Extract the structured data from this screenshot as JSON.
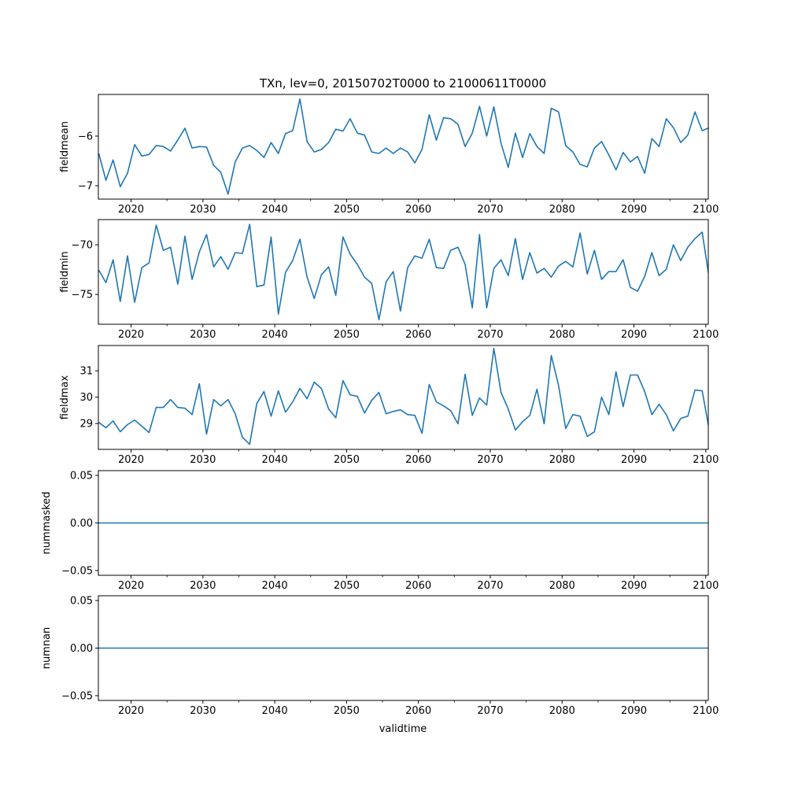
{
  "chart_data": {
    "type": "line",
    "title": "TXn, lev=0, 20150702T0000 to 21000611T0000",
    "xlabel": "validtime",
    "xlim": [
      2015.45,
      2100.35
    ],
    "x_start": 2015.5,
    "x_step": 1,
    "x_ticks": [
      2020,
      2030,
      2040,
      2050,
      2060,
      2070,
      2080,
      2090,
      2100
    ],
    "x_tick_labels": [
      "2020",
      "2030",
      "2040",
      "2050",
      "2060",
      "2070",
      "2080",
      "2090",
      "2100"
    ],
    "x_minor_ticks": [
      2025,
      2035,
      2045,
      2055,
      2065,
      2075,
      2085,
      2095
    ],
    "line_color": "#1f77b4",
    "grid": false,
    "panels": [
      {
        "ylabel": "fieldmean",
        "ylim": [
          -7.27,
          -5.16
        ],
        "y_ticks": [
          -7,
          -6
        ],
        "y_tick_labels": [
          "−7",
          "−6"
        ],
        "values": [
          -6.35,
          -6.89,
          -6.48,
          -7.02,
          -6.75,
          -6.17,
          -6.4,
          -6.37,
          -6.19,
          -6.21,
          -6.3,
          -6.08,
          -5.84,
          -6.24,
          -6.21,
          -6.22,
          -6.59,
          -6.73,
          -7.17,
          -6.52,
          -6.24,
          -6.19,
          -6.29,
          -6.43,
          -6.13,
          -6.35,
          -5.95,
          -5.89,
          -5.25,
          -6.11,
          -6.32,
          -6.27,
          -6.13,
          -5.86,
          -5.9,
          -5.65,
          -5.94,
          -5.98,
          -6.32,
          -6.35,
          -6.24,
          -6.35,
          -6.24,
          -6.32,
          -6.54,
          -6.27,
          -5.57,
          -6.08,
          -5.63,
          -5.65,
          -5.76,
          -6.21,
          -5.94,
          -5.4,
          -6.0,
          -5.41,
          -6.14,
          -6.63,
          -5.94,
          -6.43,
          -5.95,
          -6.21,
          -6.35,
          -5.44,
          -5.51,
          -6.19,
          -6.32,
          -6.57,
          -6.62,
          -6.24,
          -6.11,
          -6.38,
          -6.68,
          -6.33,
          -6.52,
          -6.41,
          -6.75,
          -6.05,
          -6.21,
          -5.65,
          -5.83,
          -6.13,
          -5.98,
          -5.51,
          -5.89,
          -5.83
        ]
      },
      {
        "ylabel": "fieldmin",
        "ylim": [
          -78.0,
          -67.46
        ],
        "y_ticks": [
          -75,
          -70
        ],
        "y_tick_labels": [
          "−75",
          "−70"
        ],
        "values": [
          -72.54,
          -73.81,
          -71.51,
          -75.71,
          -71.11,
          -75.79,
          -72.3,
          -71.83,
          -68.02,
          -70.56,
          -70.24,
          -73.97,
          -69.13,
          -73.49,
          -70.71,
          -68.97,
          -72.22,
          -71.19,
          -72.46,
          -70.79,
          -70.87,
          -67.94,
          -74.21,
          -74.05,
          -69.21,
          -76.98,
          -72.78,
          -71.59,
          -69.44,
          -73.25,
          -75.4,
          -73.02,
          -72.22,
          -75.08,
          -69.21,
          -70.95,
          -71.98,
          -73.25,
          -73.89,
          -77.54,
          -73.73,
          -72.7,
          -76.67,
          -72.3,
          -71.11,
          -71.35,
          -69.44,
          -72.3,
          -72.38,
          -70.56,
          -70.24,
          -71.98,
          -76.35,
          -68.97,
          -76.35,
          -72.38,
          -71.51,
          -73.1,
          -69.37,
          -73.49,
          -70.79,
          -72.86,
          -72.38,
          -73.25,
          -72.14,
          -71.67,
          -72.22,
          -68.81,
          -72.94,
          -70.56,
          -73.49,
          -72.7,
          -72.7,
          -71.51,
          -74.29,
          -74.68,
          -73.17,
          -70.79,
          -73.1,
          -72.46,
          -70.0,
          -71.59,
          -70.24,
          -69.37,
          -68.73,
          -73.49
        ]
      },
      {
        "ylabel": "fieldmax",
        "ylim": [
          28.02,
          31.96
        ],
        "y_ticks": [
          29,
          30,
          31
        ],
        "y_tick_labels": [
          "29",
          "30",
          "31"
        ],
        "values": [
          29.04,
          28.84,
          29.1,
          28.69,
          28.96,
          29.13,
          28.9,
          28.66,
          29.61,
          29.61,
          29.91,
          29.61,
          29.58,
          29.34,
          30.51,
          28.6,
          29.91,
          29.67,
          29.91,
          29.37,
          28.48,
          28.21,
          29.76,
          30.21,
          29.28,
          30.24,
          29.43,
          29.82,
          30.33,
          29.94,
          30.57,
          30.33,
          29.55,
          29.22,
          30.63,
          30.09,
          30.03,
          29.4,
          29.88,
          30.18,
          29.37,
          29.46,
          29.52,
          29.34,
          29.31,
          28.63,
          30.48,
          29.82,
          29.67,
          29.49,
          28.99,
          30.87,
          29.31,
          29.97,
          29.7,
          31.85,
          30.18,
          29.55,
          28.75,
          29.07,
          29.31,
          30.3,
          28.99,
          31.58,
          30.45,
          28.81,
          29.34,
          29.28,
          28.51,
          28.69,
          30.0,
          29.34,
          30.96,
          29.64,
          30.84,
          30.84,
          30.21,
          29.34,
          29.73,
          29.34,
          28.72,
          29.19,
          29.28,
          30.27,
          30.24,
          28.72
        ]
      },
      {
        "ylabel": "nummasked",
        "ylim": [
          -0.055,
          0.055
        ],
        "y_ticks": [
          -0.05,
          0.0,
          0.05
        ],
        "y_tick_labels": [
          "−0.05",
          "0.00",
          "0.05"
        ],
        "constant_value": 0.0
      },
      {
        "ylabel": "numnan",
        "ylim": [
          -0.055,
          0.055
        ],
        "y_ticks": [
          -0.05,
          0.0,
          0.05
        ],
        "y_tick_labels": [
          "−0.05",
          "0.00",
          "0.05"
        ],
        "constant_value": 0.0
      }
    ]
  }
}
